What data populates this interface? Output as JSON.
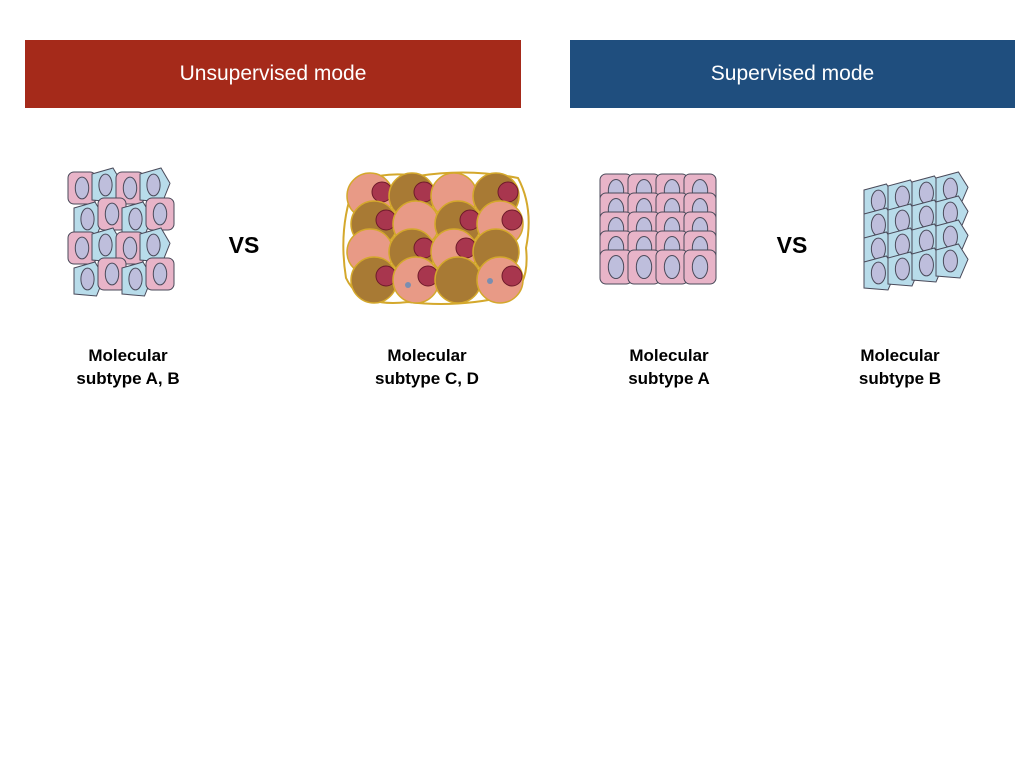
{
  "colors": {
    "unsupervised_banner": "#A52A1A",
    "supervised_banner": "#1F4E7E",
    "pink_cell": "#E8B4C8",
    "blue_cell": "#B8DCEA",
    "nucleus": "#BEBEDC",
    "salmon_cell": "#E89A86",
    "brown_cell": "#A87A34",
    "red_nucleus": "#A8364E",
    "cluster_border": "#D4A82C"
  },
  "unsupervised": {
    "title": "Unsupervised mode",
    "comparator": "VS",
    "left_group": {
      "line1": "Molecular",
      "line2": "subtype A, B",
      "icon": "mixed-epithelial-cells-icon"
    },
    "right_group": {
      "line1": "Molecular",
      "line2": "subtype C, D",
      "icon": "round-tumor-cells-icon"
    }
  },
  "supervised": {
    "title": "Supervised mode",
    "comparator": "VS",
    "left_group": {
      "line1": "Molecular",
      "line2": "subtype A",
      "icon": "pink-epithelial-cells-icon"
    },
    "right_group": {
      "line1": "Molecular",
      "line2": "subtype B",
      "icon": "blue-epithelial-cells-icon"
    }
  }
}
